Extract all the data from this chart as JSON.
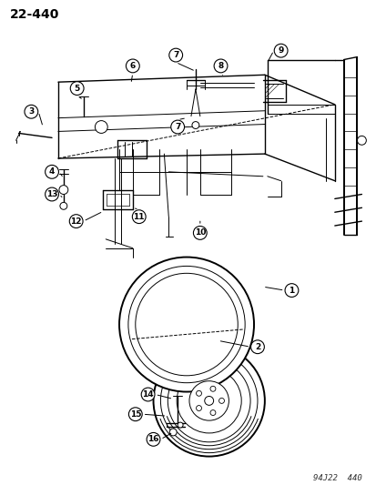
{
  "title": "22-440",
  "footer": "94J22  440",
  "bg_color": "#ffffff",
  "text_color": "#000000",
  "line_color": "#000000",
  "fig_width": 4.14,
  "fig_height": 5.33,
  "dpi": 100
}
